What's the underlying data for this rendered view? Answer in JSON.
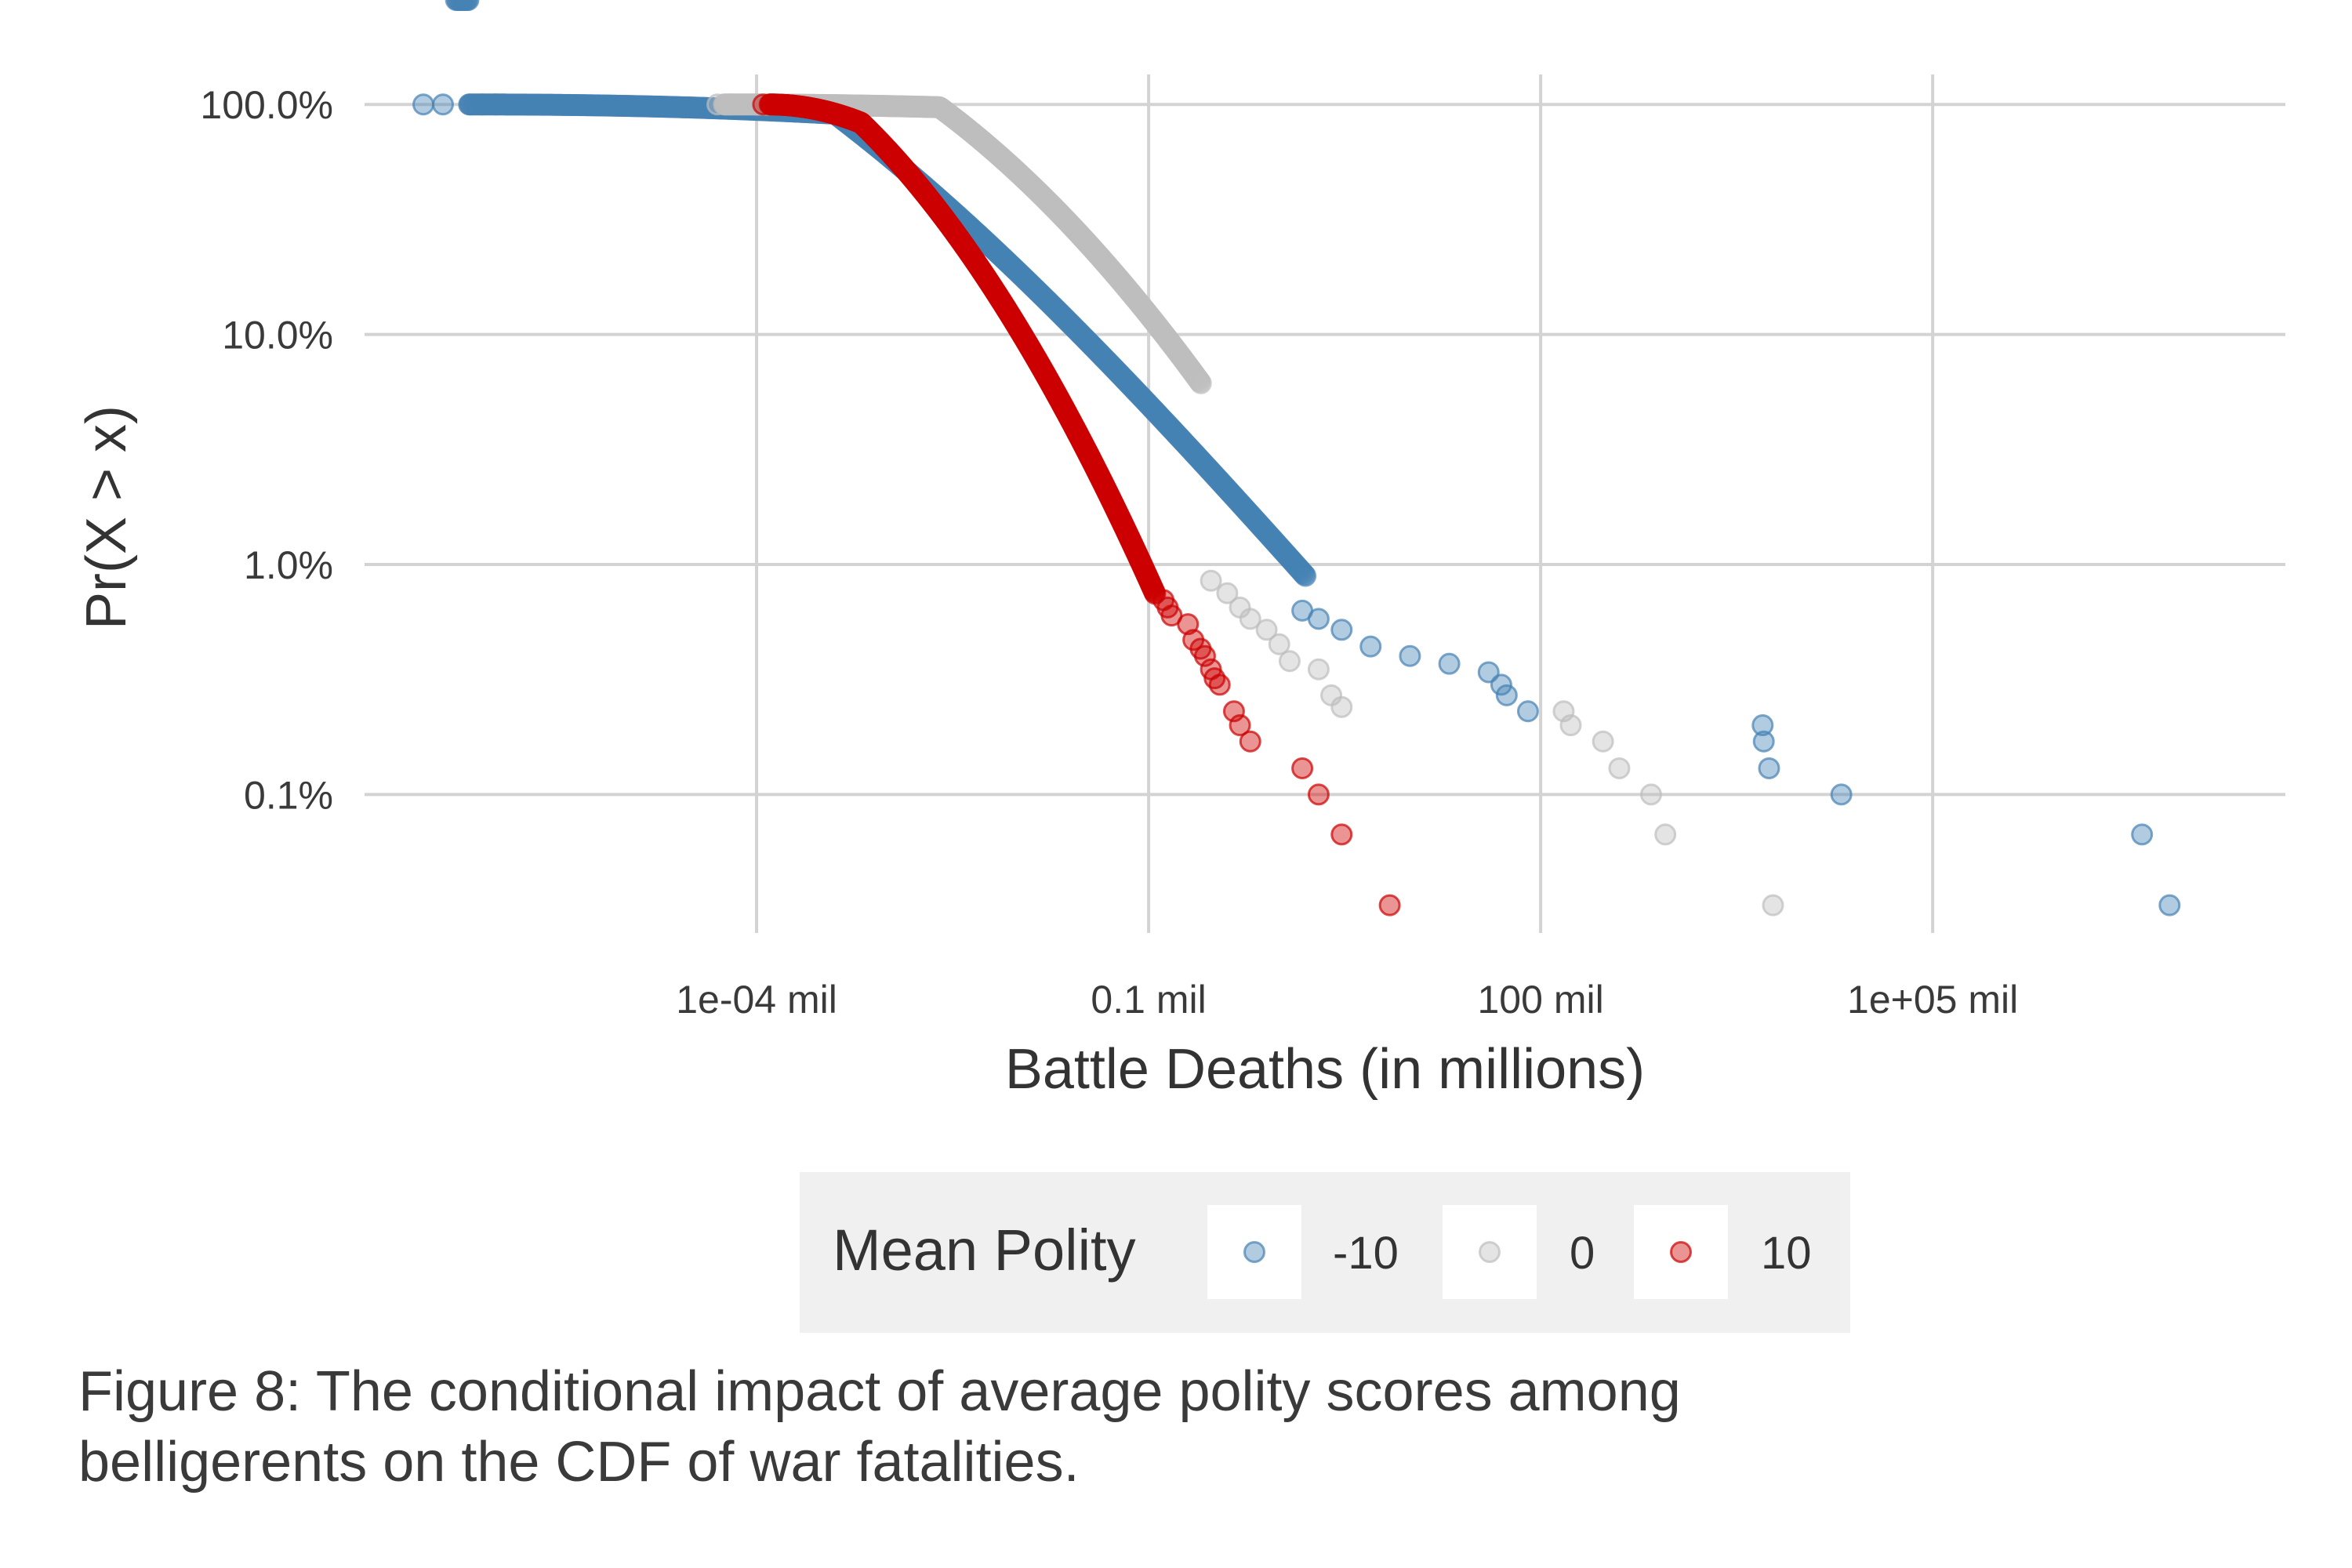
{
  "chart_data": {
    "type": "scatter",
    "xlabel": "Battle Deaths (in millions)",
    "ylabel": "Pr(X > x)",
    "x_scale": "log10",
    "y_scale": "log10",
    "xlim": [
      1e-07,
      50000000.0
    ],
    "ylim": [
      0.00025,
      1.35
    ],
    "x_ticks": [
      {
        "value": 0.0001,
        "label": "1e-04 mil"
      },
      {
        "value": 0.1,
        "label": "0.1 mil"
      },
      {
        "value": 100,
        "label": "100 mil"
      },
      {
        "value": 100000,
        "label": "1e+05 mil"
      }
    ],
    "y_ticks": [
      {
        "value": 1.0,
        "label": "100.0%"
      },
      {
        "value": 0.1,
        "label": "10.0%"
      },
      {
        "value": 0.01,
        "label": "1.0%"
      },
      {
        "value": 0.001,
        "label": "0.1%"
      }
    ],
    "grid": true,
    "legend": {
      "title": "Mean Polity",
      "position": "bottom",
      "entries": [
        {
          "label": "-10",
          "color": "#4682b4"
        },
        {
          "label": "0",
          "color": "#bebebe"
        },
        {
          "label": "10",
          "color": "#cc0000"
        }
      ]
    },
    "series": [
      {
        "name": "-10",
        "color": "#4682b4",
        "tail_points": [
          [
            1.5,
            0.0063
          ],
          [
            2.0,
            0.0058
          ],
          [
            3.0,
            0.0052
          ],
          [
            5.0,
            0.0044
          ],
          [
            10.0,
            0.004
          ],
          [
            20.0,
            0.0037
          ],
          [
            40.0,
            0.0034
          ],
          [
            50.0,
            0.003
          ],
          [
            55.0,
            0.0027
          ],
          [
            80.0,
            0.0023
          ],
          [
            5000.0,
            0.002
          ],
          [
            5100.0,
            0.0017
          ],
          [
            5600.0,
            0.0013
          ],
          [
            20000.0,
            0.001
          ],
          [
            4000000.0,
            0.00067
          ],
          [
            6500000.0,
            0.00033
          ]
        ]
      },
      {
        "name": "0",
        "color": "#bebebe",
        "tail_points": [
          [
            0.3,
            0.0085
          ],
          [
            0.4,
            0.0075
          ],
          [
            0.5,
            0.0065
          ],
          [
            0.6,
            0.0058
          ],
          [
            0.8,
            0.0052
          ],
          [
            1.0,
            0.0045
          ],
          [
            1.2,
            0.0038
          ],
          [
            2.0,
            0.0035
          ],
          [
            2.5,
            0.0027
          ],
          [
            3.0,
            0.0024
          ],
          [
            150.0,
            0.0023
          ],
          [
            170.0,
            0.002
          ],
          [
            300.0,
            0.0017
          ],
          [
            400.0,
            0.0013
          ],
          [
            700.0,
            0.001
          ],
          [
            900.0,
            0.00067
          ],
          [
            6000.0,
            0.00033
          ]
        ]
      },
      {
        "name": "10",
        "color": "#cc0000",
        "tail_points": [
          [
            0.13,
            0.007
          ],
          [
            0.14,
            0.0065
          ],
          [
            0.15,
            0.006
          ],
          [
            0.2,
            0.0055
          ],
          [
            0.22,
            0.0047
          ],
          [
            0.25,
            0.0043
          ],
          [
            0.27,
            0.004
          ],
          [
            0.3,
            0.0035
          ],
          [
            0.32,
            0.0032
          ],
          [
            0.35,
            0.003
          ],
          [
            0.45,
            0.0023
          ],
          [
            0.5,
            0.002
          ],
          [
            0.6,
            0.0017
          ],
          [
            1.5,
            0.0013
          ],
          [
            2.0,
            0.001
          ],
          [
            3.0,
            0.00067
          ],
          [
            7.0,
            0.00033
          ]
        ]
      }
    ]
  },
  "caption": {
    "line1": "Figure 8: The conditional impact of average polity scores among",
    "line2": "belligerents on the CDF of war fatalities."
  }
}
